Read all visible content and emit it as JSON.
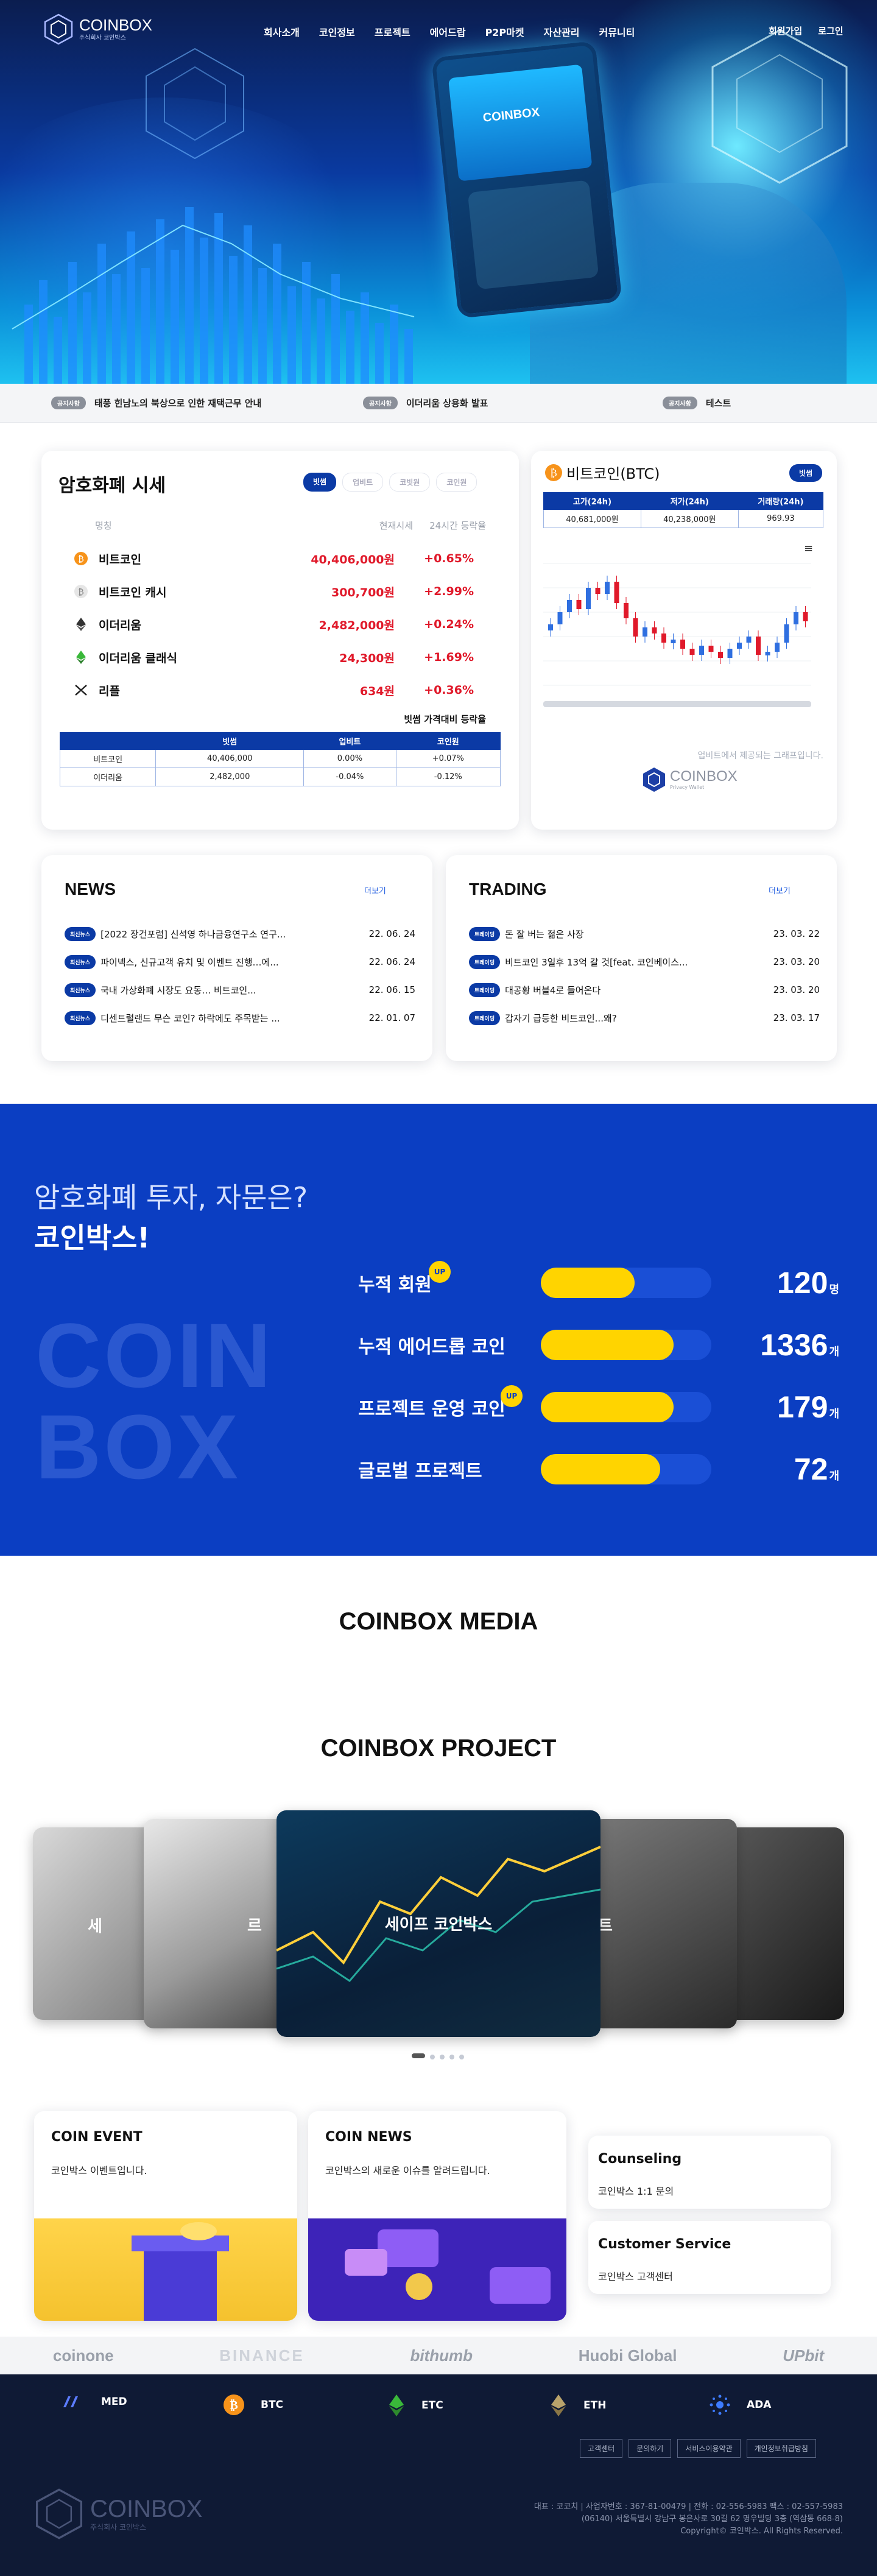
{
  "header": {
    "logo_text": "COINBOX",
    "logo_sub": "주식회사 코인박스",
    "nav": [
      "회사소개",
      "코인정보",
      "프로젝트",
      "에어드랍",
      "P2P마켓",
      "자산관리",
      "커뮤니티"
    ],
    "signup": "회원가입",
    "login": "로그인",
    "phone_logo": "COINBOX"
  },
  "ticker": [
    {
      "badge": "공지사항",
      "text": "태풍 힌남노의 북상으로 인한 재택근무 안내"
    },
    {
      "badge": "공지사항",
      "text": "이더리움 상용화 발표"
    },
    {
      "badge": "공지사항",
      "text": "테스트"
    }
  ],
  "market": {
    "title": "암호화폐 시세",
    "tabs": [
      "빗썸",
      "업비트",
      "코빗원",
      "코인원"
    ],
    "col_name": "명칭",
    "col_price": "현재시세",
    "col_change": "24시간 등락율",
    "rows": [
      {
        "name": "비트코인",
        "price": "40,406,000원",
        "change": "+0.65%",
        "icon": "bitcoin-icon"
      },
      {
        "name": "비트코인 캐시",
        "price": "300,700원",
        "change": "+2.99%",
        "icon": "bitcoin-cash-icon"
      },
      {
        "name": "이더리움",
        "price": "2,482,000원",
        "change": "+0.24%",
        "icon": "ethereum-icon"
      },
      {
        "name": "이더리움 클래식",
        "price": "24,300원",
        "change": "+1.69%",
        "icon": "ethereum-classic-icon"
      },
      {
        "name": "리플",
        "price": "634원",
        "change": "+0.36%",
        "icon": "ripple-icon"
      }
    ],
    "compare_title": "빗썸 가격대비 등락율",
    "compare_headers": [
      "",
      "빗썸",
      "업비트",
      "코인원"
    ],
    "compare_rows": [
      [
        "비트코인",
        "40,406,000",
        "0.00%",
        "+0.07%"
      ],
      [
        "이더리움",
        "2,482,000",
        "-0.04%",
        "-0.12%"
      ]
    ]
  },
  "btc": {
    "title": "비트코인(BTC)",
    "tab": "빗썸",
    "headers": [
      "고가(24h)",
      "저가(24h)",
      "거래량(24h)"
    ],
    "values": [
      "40,681,000원",
      "40,238,000원",
      "969.93"
    ],
    "note": "업비트에서 제공되는 그래프입니다.",
    "logo": "COINBOX",
    "logo_sub": "Privacy Wallet"
  },
  "news": {
    "title": "NEWS",
    "more": "더보기",
    "items": [
      {
        "badge": "최신뉴스",
        "text": "[2022 장건포럼] 신석영 하나금융연구소 연구...",
        "date": "22. 06. 24"
      },
      {
        "badge": "최신뉴스",
        "text": "파이넥스, 신규고객 유치 및 이벤트 진행…에...",
        "date": "22. 06. 24"
      },
      {
        "badge": "최신뉴스",
        "text": "국내 가상화폐 시장도 요동… 비트코인...",
        "date": "22. 06. 15"
      },
      {
        "badge": "최신뉴스",
        "text": "디센트럴랜드 무슨 코인? 하락에도 주목받는 ...",
        "date": "22. 01. 07"
      }
    ]
  },
  "trading": {
    "title": "TRADING",
    "more": "더보기",
    "items": [
      {
        "badge": "트레이딩",
        "text": "돈 잘 버는 젊은 사장",
        "date": "23. 03. 22"
      },
      {
        "badge": "트레이딩",
        "text": "비트코인 3일후 13억 갈 것[feat. 코인베이스...",
        "date": "23. 03. 20"
      },
      {
        "badge": "트레이딩",
        "text": "대공황 버블4로 들어온다",
        "date": "23. 03. 20"
      },
      {
        "badge": "트레이딩",
        "text": "갑자기 급등한 비트코인...왜?",
        "date": "23. 03. 17"
      }
    ]
  },
  "stats": {
    "line1": "암호화폐 투자, 자문은?",
    "line2": "코인박스!",
    "watermark1": "COIN",
    "watermark2": "BOX",
    "up_badge": "UP",
    "items": [
      {
        "label": "누적 회원",
        "value": "120",
        "unit": "명",
        "level": 0.55,
        "up": true
      },
      {
        "label": "누적 에어드롭 코인",
        "value": "1336",
        "unit": "개",
        "level": 0.78,
        "up": false
      },
      {
        "label": "프로젝트 운영 코인",
        "value": "179",
        "unit": "개",
        "level": 0.78,
        "up": true
      },
      {
        "label": "글로벌 프로젝트",
        "value": "72",
        "unit": "개",
        "level": 0.7,
        "up": false
      }
    ]
  },
  "media_title": "COINBOX MEDIA",
  "project": {
    "title": "COINBOX PROJECT",
    "center_label": "세이프 코인박스",
    "side_labels": [
      "세",
      "르",
      "트"
    ]
  },
  "bottom_cards": [
    {
      "title": "COIN EVENT",
      "text": "코인박스 이벤트입니다."
    },
    {
      "title": "COIN NEWS",
      "text": "코인박스의 새로운 이슈를 알려드립니다."
    },
    {
      "title": "Counseling",
      "text": "코인박스 1:1 문의"
    },
    {
      "title": "Customer Service",
      "text": "코인박스 고객센터"
    }
  ],
  "partners": [
    "coinone",
    "BINANCE",
    "bithumb",
    "Huobi Global",
    "UPbit"
  ],
  "coins": [
    "MED",
    "BTC",
    "ETC",
    "ETH",
    "ADA"
  ],
  "footer": {
    "links": [
      "고객센터",
      "문의하기",
      "서비스이용약관",
      "개인정보취급방침"
    ],
    "logo": "COINBOX",
    "logo_sub": "주식회사 코인박스",
    "info1": "대표 : 코코치 | 사업자번호 : 367-81-00479 | 전화 : 02-556-5983 팩스 : 02-557-5983",
    "info2": "(06140) 서울특별시 강남구 봉은사로 30길 62 명우빌딩 3층 (역삼동 668-8)",
    "copyright": "Copyright© 코인박스. All Rights Reserved."
  }
}
